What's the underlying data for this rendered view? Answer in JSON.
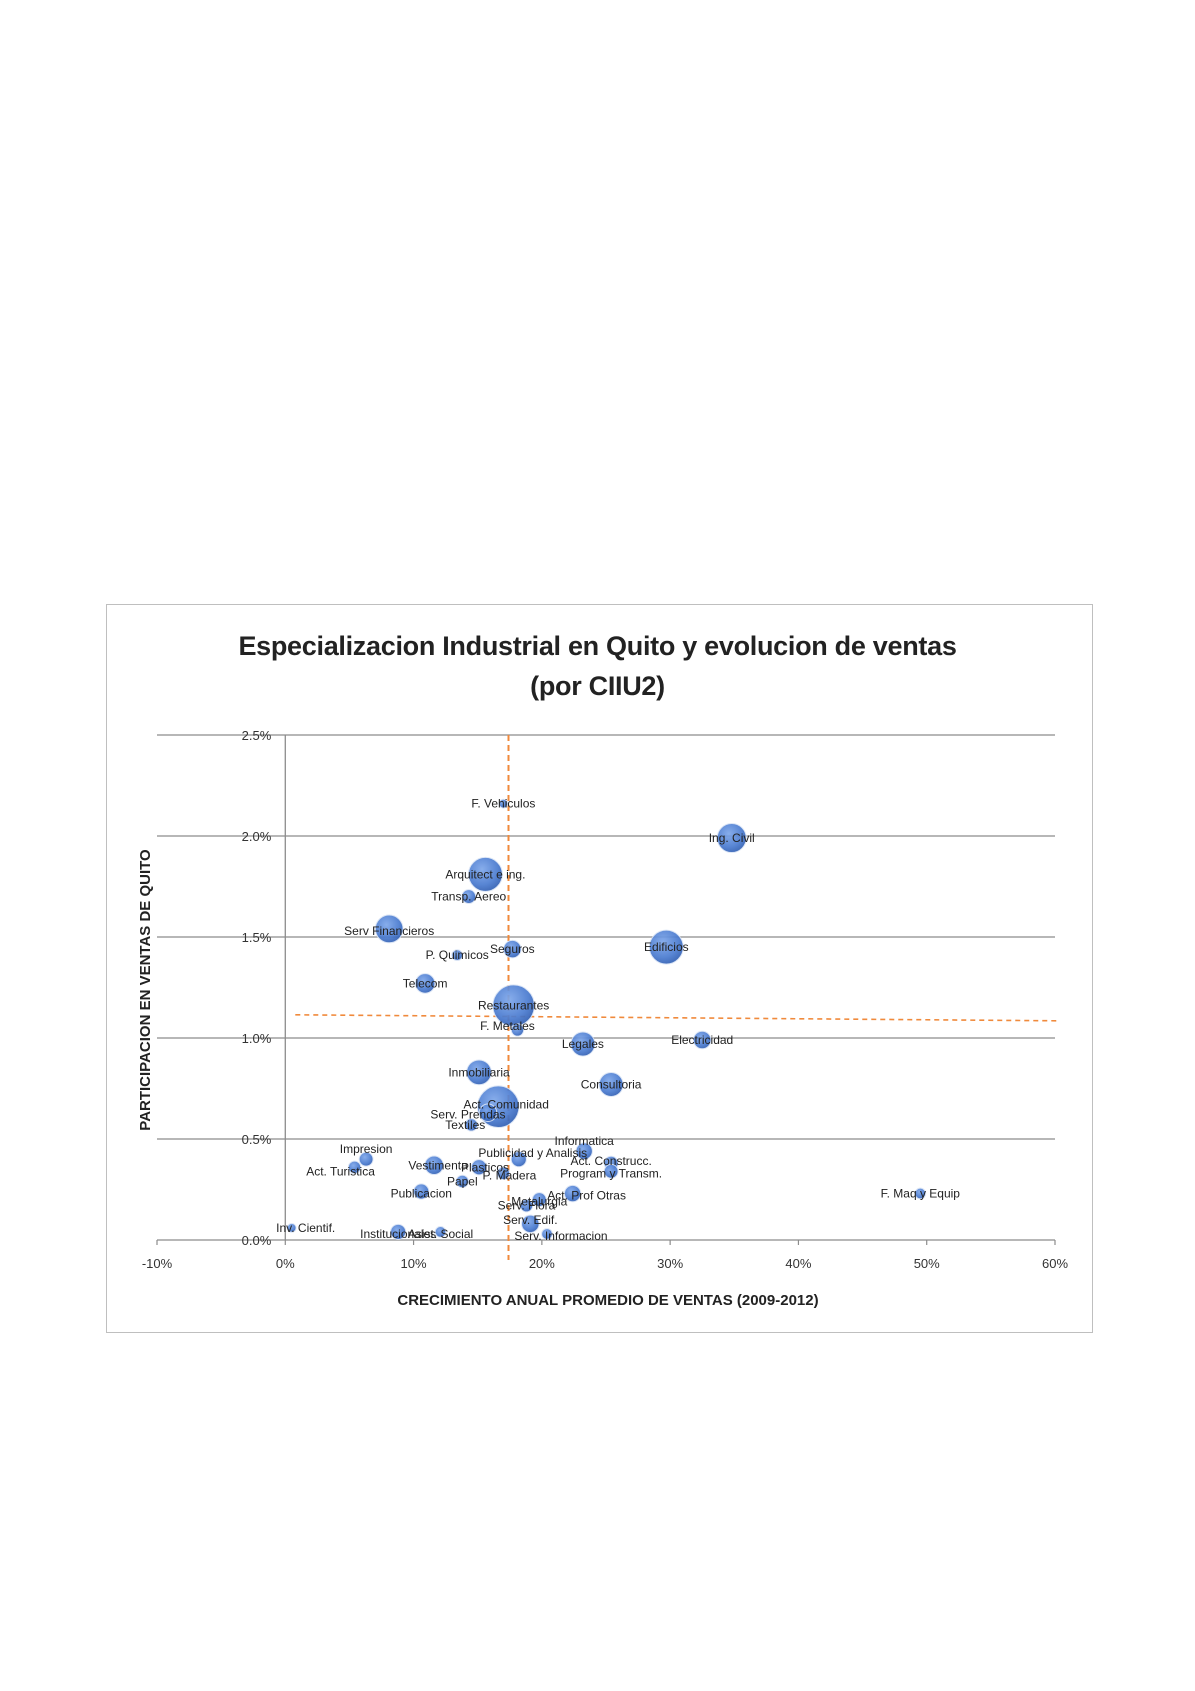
{
  "chart_data": {
    "type": "bubble",
    "title": "Especializacion Industrial en Quito y evolucion de ventas",
    "subtitle": "(por CIIU2)",
    "xlabel": "CRECIMIENTO ANUAL PROMEDIO  DE VENTAS (2009-2012)",
    "ylabel": "PARTICIPACION EN VENTAS DE QUITO",
    "xlim": [
      -0.1,
      0.6
    ],
    "ylim": [
      0.0,
      0.025
    ],
    "x_ticks": [
      -0.1,
      0,
      0.1,
      0.2,
      0.3,
      0.4,
      0.5,
      0.6
    ],
    "x_tick_labels": [
      "-10%",
      "0%",
      "10%",
      "20%",
      "30%",
      "40%",
      "50%",
      "60%"
    ],
    "y_ticks": [
      0.0,
      0.005,
      0.01,
      0.015,
      0.02,
      0.025
    ],
    "y_tick_labels": [
      "0.0%",
      "0.5%",
      "1.0%",
      "1.5%",
      "2.0%",
      "2.5%"
    ],
    "grid": "horizontal",
    "reference_lines": {
      "x": 0.174,
      "y": 0.011
    },
    "bubble_color": "#4a7bd0",
    "reference_color": "#f08a3c",
    "points": [
      {
        "label": "F. Vehiculos",
        "x": 0.17,
        "y": 0.0216,
        "size": 2
      },
      {
        "label": "Ing. Civil",
        "x": 0.348,
        "y": 0.0199,
        "size": 22
      },
      {
        "label": "Arquitect e ing.",
        "x": 0.156,
        "y": 0.0181,
        "size": 30
      },
      {
        "label": "Transp. Aereo",
        "x": 0.143,
        "y": 0.017,
        "size": 5
      },
      {
        "label": "Serv Financieros",
        "x": 0.081,
        "y": 0.0154,
        "size": 20
      },
      {
        "label": "Edificios",
        "x": 0.297,
        "y": 0.0145,
        "size": 30
      },
      {
        "label": "Seguros",
        "x": 0.177,
        "y": 0.0144,
        "size": 8
      },
      {
        "label": "P. Quimicos",
        "x": 0.134,
        "y": 0.0141,
        "size": 3
      },
      {
        "label": "Telecom",
        "x": 0.109,
        "y": 0.0127,
        "size": 10
      },
      {
        "label": "Restaurantes",
        "x": 0.178,
        "y": 0.0116,
        "size": 45
      },
      {
        "label": "F. Metales",
        "x": 0.181,
        "y": 0.0104,
        "size": 4
      },
      {
        "label": "Electricidad",
        "x": 0.325,
        "y": 0.0099,
        "size": 8
      },
      {
        "label": "Legales",
        "x": 0.232,
        "y": 0.0097,
        "size": 15
      },
      {
        "label": "Inmobiliaria",
        "x": 0.151,
        "y": 0.0083,
        "size": 16
      },
      {
        "label": "Consultoria",
        "x": 0.254,
        "y": 0.0077,
        "size": 15
      },
      {
        "label": "Act. Comunidad",
        "x": 0.166,
        "y": 0.0066,
        "size": 45
      },
      {
        "label": "Serv. Prendas",
        "x": 0.158,
        "y": 0.0063,
        "size": 8
      },
      {
        "label": "Textiles",
        "x": 0.145,
        "y": 0.0057,
        "size": 4
      },
      {
        "label": "Informatica",
        "x": 0.233,
        "y": 0.0044,
        "size": 7
      },
      {
        "label": "Impresion",
        "x": 0.063,
        "y": 0.004,
        "size": 5
      },
      {
        "label": "Publicidad y Analisis",
        "x": 0.182,
        "y": 0.004,
        "size": 6
      },
      {
        "label": "Act. Construcc.",
        "x": 0.254,
        "y": 0.0038,
        "size": 5
      },
      {
        "label": "Act. Turistica",
        "x": 0.054,
        "y": 0.0036,
        "size": 4
      },
      {
        "label": "Vestimenta",
        "x": 0.116,
        "y": 0.0037,
        "size": 9
      },
      {
        "label": "Plasticos",
        "x": 0.151,
        "y": 0.0036,
        "size": 6
      },
      {
        "label": "Program y Transm.",
        "x": 0.254,
        "y": 0.0034,
        "size": 5
      },
      {
        "label": "P. Madera",
        "x": 0.17,
        "y": 0.0033,
        "size": 4
      },
      {
        "label": "Papel",
        "x": 0.138,
        "y": 0.0029,
        "size": 4
      },
      {
        "label": "Publicacion",
        "x": 0.106,
        "y": 0.0024,
        "size": 6
      },
      {
        "label": "Act. Prof Otras",
        "x": 0.224,
        "y": 0.0023,
        "size": 7
      },
      {
        "label": "F. Maq y Equip",
        "x": 0.495,
        "y": 0.0023,
        "size": 3
      },
      {
        "label": "Metalurgia",
        "x": 0.198,
        "y": 0.002,
        "size": 5
      },
      {
        "label": "Serv. Flora",
        "x": 0.188,
        "y": 0.0017,
        "size": 4
      },
      {
        "label": "Serv. Edif.",
        "x": 0.191,
        "y": 0.0008,
        "size": 8
      },
      {
        "label": "Inv. Cientif.",
        "x": 0.005,
        "y": 0.0006,
        "size": 2
      },
      {
        "label": "Institucionales",
        "x": 0.088,
        "y": 0.0004,
        "size": 6
      },
      {
        "label": "Asist. Social",
        "x": 0.121,
        "y": 0.0004,
        "size": 3
      },
      {
        "label": "Serv. Informacion",
        "x": 0.204,
        "y": 0.0003,
        "size": 3
      }
    ]
  }
}
